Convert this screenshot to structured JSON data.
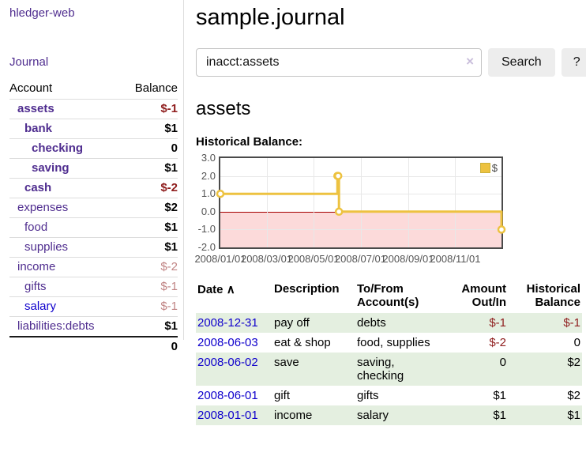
{
  "app": {
    "brand": "hledger-web"
  },
  "icons": {
    "clear_search": "×",
    "sort_ascending": "∧"
  },
  "colors": {
    "link_purple": "#4f2d8f",
    "link_blue": "#0f00cc",
    "negative_strong": "#8f1d1d",
    "negative_light": "#c08484",
    "row_green": "#e4efe0",
    "chart_line_gold": "#edc240",
    "chart_negative_pink": "#fcdada",
    "chart_zero_line": "#a40000"
  },
  "sidebar": {
    "journal_link": "Journal",
    "accounts_table": {
      "headers": {
        "account": "Account",
        "balance": "Balance"
      },
      "rows": [
        {
          "name": "assets",
          "depth": 1,
          "bold": true,
          "balance": "$-1",
          "balance_style": "neg-strong"
        },
        {
          "name": "bank",
          "depth": 2,
          "bold": true,
          "balance": "$1",
          "balance_style": "pos"
        },
        {
          "name": "checking",
          "depth": 3,
          "bold": true,
          "balance": "0",
          "balance_style": "pos"
        },
        {
          "name": "saving",
          "depth": 3,
          "bold": true,
          "balance": "$1",
          "balance_style": "pos"
        },
        {
          "name": "cash",
          "depth": 2,
          "bold": true,
          "balance": "$-2",
          "balance_style": "neg-strong"
        },
        {
          "name": "expenses",
          "depth": 1,
          "bold": false,
          "balance": "$2",
          "balance_style": "pos"
        },
        {
          "name": "food",
          "depth": 2,
          "bold": false,
          "balance": "$1",
          "balance_style": "pos"
        },
        {
          "name": "supplies",
          "depth": 2,
          "bold": false,
          "balance": "$1",
          "balance_style": "pos"
        },
        {
          "name": "income",
          "depth": 1,
          "bold": false,
          "balance": "$-2",
          "balance_style": "neg-light"
        },
        {
          "name": "gifts",
          "depth": 2,
          "bold": false,
          "balance": "$-1",
          "balance_style": "neg-light"
        },
        {
          "name": "salary",
          "depth": 2,
          "bold": false,
          "link": "blue",
          "balance": "$-1",
          "balance_style": "neg-light"
        },
        {
          "name": "liabilities:debts",
          "depth": 1,
          "bold": false,
          "balance": "$1",
          "balance_style": "pos"
        }
      ],
      "total": "0"
    }
  },
  "main": {
    "title": "sample.journal",
    "search": {
      "value": "inacct:assets",
      "button": "Search",
      "help": "?"
    },
    "account_heading": "assets",
    "chart_label": "Historical Balance:"
  },
  "chart_data": {
    "type": "line",
    "step": "post",
    "legend": [
      {
        "label": "$",
        "color": "#edc240"
      }
    ],
    "x_ticks": [
      "2008/01/01",
      "2008/03/01",
      "2008/05/01",
      "2008/07/01",
      "2008/09/01",
      "2008/11/01"
    ],
    "x_tick_days": [
      0,
      60,
      121,
      182,
      244,
      305
    ],
    "x_range_days": [
      0,
      365
    ],
    "y_ticks": [
      3.0,
      2.0,
      1.0,
      0.0,
      -1.0,
      -2.0
    ],
    "ylim": [
      -2.0,
      3.0
    ],
    "grid": true,
    "legend_position": "top-right",
    "points": [
      {
        "date": "2008-01-01",
        "day": 0,
        "value": 1
      },
      {
        "date": "2008-06-01",
        "day": 152,
        "value": 2
      },
      {
        "date": "2008-06-02",
        "day": 153,
        "value": 2
      },
      {
        "date": "2008-06-03",
        "day": 154,
        "value": 0
      },
      {
        "date": "2008-12-31",
        "day": 365,
        "value": -1
      }
    ]
  },
  "register_table": {
    "headers": {
      "date": "Date",
      "description": "Description",
      "accounts": "To/From Account(s)",
      "amount": "Amount Out/In",
      "balance": "Historical Balance"
    },
    "rows": [
      {
        "date": "2008-12-31",
        "description": "pay off",
        "accounts": "debts",
        "amount": "$-1",
        "amount_negative": true,
        "balance": "$-1",
        "balance_negative": true,
        "shaded": true
      },
      {
        "date": "2008-06-03",
        "description": "eat & shop",
        "accounts": "food, supplies",
        "amount": "$-2",
        "amount_negative": true,
        "balance": "0",
        "balance_negative": false,
        "shaded": false
      },
      {
        "date": "2008-06-02",
        "description": "save",
        "accounts": "saving, checking",
        "amount": "0",
        "amount_negative": false,
        "balance": "$2",
        "balance_negative": false,
        "shaded": true
      },
      {
        "date": "2008-06-01",
        "description": "gift",
        "accounts": "gifts",
        "amount": "$1",
        "amount_negative": false,
        "balance": "$2",
        "balance_negative": false,
        "shaded": false
      },
      {
        "date": "2008-01-01",
        "description": "income",
        "accounts": "salary",
        "amount": "$1",
        "amount_negative": false,
        "balance": "$1",
        "balance_negative": false,
        "shaded": true
      }
    ]
  }
}
